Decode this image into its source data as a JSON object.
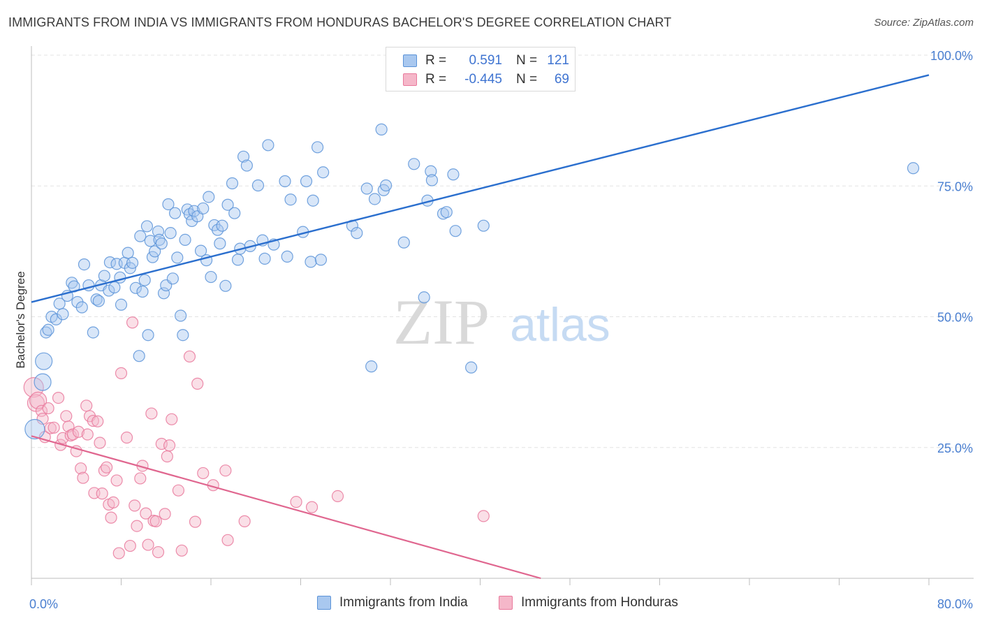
{
  "title": "IMMIGRANTS FROM INDIA VS IMMIGRANTS FROM HONDURAS BACHELOR'S DEGREE CORRELATION CHART",
  "source": "Source: ZipAtlas.com",
  "watermark": {
    "zip": "ZIP",
    "atlas": "atlas"
  },
  "colors": {
    "india_fill": "#a9c8ef",
    "india_stroke": "#5b93d8",
    "india_line": "#2b6fce",
    "honduras_fill": "#f5b7c9",
    "honduras_stroke": "#e9799c",
    "honduras_line": "#e0668f",
    "tick_text": "#4a7fd0"
  },
  "legend_top": [
    {
      "r_label": "R =",
      "r_value": "0.591",
      "n_label": "N =",
      "n_value": "121"
    },
    {
      "r_label": "R =",
      "r_value": "-0.445",
      "n_label": "N =",
      "n_value": "69"
    }
  ],
  "chart_data": {
    "type": "scatter",
    "title": "IMMIGRANTS FROM INDIA VS IMMIGRANTS FROM HONDURAS BACHELOR'S DEGREE CORRELATION CHART",
    "xlabel": "",
    "ylabel": "Bachelor's Degree",
    "xlim": [
      0,
      80
    ],
    "ylim": [
      0,
      100
    ],
    "x_tick_labels": [
      "0.0%",
      "80.0%"
    ],
    "y_tick_labels": [
      "25.0%",
      "50.0%",
      "75.0%",
      "100.0%"
    ],
    "y_ticks": [
      25,
      50,
      75,
      100
    ],
    "grid": true,
    "legend_position": "bottom-center",
    "series": [
      {
        "name": "Immigrants from India",
        "trend": {
          "x": [
            0,
            80
          ],
          "y": [
            52.8,
            96.2
          ]
        },
        "points": [
          [
            0.3,
            28.5,
            14
          ],
          [
            1,
            37.5,
            12
          ],
          [
            1.1,
            41.5,
            12
          ],
          [
            1.3,
            47,
            8
          ],
          [
            1.5,
            47.5,
            8
          ],
          [
            1.8,
            50,
            8
          ],
          [
            2.2,
            49.5,
            8
          ],
          [
            2.5,
            52.5,
            8
          ],
          [
            2.8,
            50.5,
            8
          ],
          [
            3.2,
            54,
            8
          ],
          [
            3.6,
            56.5,
            8
          ],
          [
            3.8,
            55.8,
            8
          ],
          [
            4.1,
            52.8,
            8
          ],
          [
            4.5,
            51.8,
            8
          ],
          [
            4.7,
            60,
            8
          ],
          [
            5.1,
            56,
            8
          ],
          [
            5.5,
            47,
            8
          ],
          [
            5.8,
            53.3,
            8
          ],
          [
            6.0,
            53,
            8
          ],
          [
            6.2,
            56,
            8
          ],
          [
            6.5,
            57.8,
            8
          ],
          [
            6.9,
            55,
            8
          ],
          [
            7.0,
            60.4,
            8
          ],
          [
            7.4,
            55.6,
            8
          ],
          [
            7.6,
            60.1,
            8
          ],
          [
            7.9,
            57.5,
            8
          ],
          [
            8.0,
            52.3,
            8
          ],
          [
            8.3,
            60.3,
            8
          ],
          [
            8.6,
            62.2,
            8
          ],
          [
            8.8,
            59.3,
            8
          ],
          [
            9.0,
            60.3,
            8
          ],
          [
            9.3,
            55.5,
            8
          ],
          [
            9.6,
            42.5,
            8
          ],
          [
            9.7,
            65.4,
            8
          ],
          [
            9.9,
            54.8,
            8
          ],
          [
            10.1,
            57,
            8
          ],
          [
            10.3,
            67.3,
            8
          ],
          [
            10.4,
            46.5,
            8
          ],
          [
            10.6,
            64.5,
            8
          ],
          [
            10.8,
            61.4,
            8
          ],
          [
            11.0,
            62.5,
            8
          ],
          [
            11.3,
            66.3,
            8
          ],
          [
            11.4,
            64.7,
            8
          ],
          [
            11.6,
            64,
            8
          ],
          [
            11.8,
            54.5,
            8
          ],
          [
            12.0,
            56,
            8
          ],
          [
            12.2,
            71.5,
            8
          ],
          [
            12.4,
            66,
            8
          ],
          [
            12.6,
            57.3,
            8
          ],
          [
            12.8,
            69.8,
            8
          ],
          [
            13.0,
            61.3,
            8
          ],
          [
            13.3,
            50.2,
            8
          ],
          [
            13.5,
            46.5,
            8
          ],
          [
            13.7,
            64.7,
            8
          ],
          [
            13.9,
            70.5,
            8
          ],
          [
            14.1,
            69.6,
            8
          ],
          [
            14.3,
            68.3,
            8
          ],
          [
            14.5,
            70.2,
            8
          ],
          [
            14.8,
            69.2,
            8
          ],
          [
            15.1,
            62.6,
            8
          ],
          [
            15.3,
            70.7,
            8
          ],
          [
            15.6,
            60.8,
            8
          ],
          [
            15.8,
            72.9,
            8
          ],
          [
            16.0,
            57.6,
            8
          ],
          [
            16.3,
            67.5,
            8
          ],
          [
            16.6,
            66.6,
            8
          ],
          [
            16.8,
            64,
            8
          ],
          [
            17.0,
            67.4,
            8
          ],
          [
            17.3,
            55.9,
            8
          ],
          [
            17.5,
            71.4,
            8
          ],
          [
            17.9,
            75.5,
            8
          ],
          [
            18.1,
            69.8,
            8
          ],
          [
            18.4,
            60.9,
            8
          ],
          [
            18.6,
            63,
            8
          ],
          [
            18.9,
            80.6,
            8
          ],
          [
            19.2,
            78.9,
            8
          ],
          [
            19.5,
            63.5,
            8
          ],
          [
            20.2,
            75.1,
            8
          ],
          [
            20.6,
            64.6,
            8
          ],
          [
            20.8,
            61.1,
            8
          ],
          [
            21.1,
            82.8,
            8
          ],
          [
            21.6,
            63.8,
            8
          ],
          [
            22.6,
            75.9,
            8
          ],
          [
            22.8,
            61.5,
            8
          ],
          [
            23.1,
            72.4,
            8
          ],
          [
            24.2,
            66.2,
            8
          ],
          [
            24.5,
            75.9,
            8
          ],
          [
            24.9,
            60.5,
            8
          ],
          [
            25.1,
            72.2,
            8
          ],
          [
            25.5,
            82.4,
            8
          ],
          [
            25.8,
            60.9,
            8
          ],
          [
            26.0,
            77.6,
            8
          ],
          [
            28.6,
            67.4,
            8
          ],
          [
            29.0,
            66,
            8
          ],
          [
            29.9,
            74.5,
            8
          ],
          [
            30.3,
            40.5,
            8
          ],
          [
            30.6,
            72.5,
            8
          ],
          [
            31.2,
            85.8,
            8
          ],
          [
            31.4,
            74.2,
            8
          ],
          [
            31.6,
            75.1,
            8
          ],
          [
            33.2,
            64.2,
            8
          ],
          [
            34.1,
            79.2,
            8
          ],
          [
            35.0,
            53.7,
            8
          ],
          [
            35.3,
            72.2,
            8
          ],
          [
            35.6,
            77.8,
            8
          ],
          [
            35.7,
            76.1,
            8
          ],
          [
            36.7,
            69.7,
            8
          ],
          [
            37.0,
            70,
            8
          ],
          [
            37.6,
            77.2,
            8
          ],
          [
            37.8,
            66.4,
            8
          ],
          [
            39.2,
            40.3,
            8
          ],
          [
            40.3,
            67.4,
            8
          ],
          [
            78.6,
            78.4,
            8
          ]
        ]
      },
      {
        "name": "Immigrants from Honduras",
        "trend": {
          "x": [
            0,
            45.4
          ],
          "y": [
            27.2,
            0
          ]
        },
        "points": [
          [
            0.2,
            36.5,
            14
          ],
          [
            0.4,
            33.5,
            12
          ],
          [
            0.6,
            34,
            12
          ],
          [
            0.9,
            32,
            8
          ],
          [
            1.0,
            30.5,
            8
          ],
          [
            1.2,
            27,
            8
          ],
          [
            1.5,
            32.5,
            8
          ],
          [
            1.7,
            28.7,
            8
          ],
          [
            2.0,
            28.8,
            8
          ],
          [
            2.4,
            34.5,
            8
          ],
          [
            2.6,
            25.5,
            8
          ],
          [
            2.8,
            26.8,
            8
          ],
          [
            3.1,
            31,
            8
          ],
          [
            3.3,
            29,
            8
          ],
          [
            3.5,
            27.3,
            8
          ],
          [
            3.7,
            27.5,
            8
          ],
          [
            4.0,
            24.3,
            8
          ],
          [
            4.2,
            28,
            8
          ],
          [
            4.4,
            21,
            8
          ],
          [
            4.6,
            19.2,
            8
          ],
          [
            4.9,
            33,
            8
          ],
          [
            5.0,
            27.5,
            8
          ],
          [
            5.2,
            31,
            8
          ],
          [
            5.5,
            30.1,
            8
          ],
          [
            5.6,
            16.3,
            8
          ],
          [
            5.9,
            30,
            8
          ],
          [
            6.1,
            25.9,
            8
          ],
          [
            6.3,
            16.2,
            8
          ],
          [
            6.5,
            20.6,
            8
          ],
          [
            6.7,
            21.2,
            8
          ],
          [
            6.9,
            14.1,
            8
          ],
          [
            7.1,
            11.6,
            8
          ],
          [
            7.3,
            14.5,
            8
          ],
          [
            7.6,
            18.7,
            8
          ],
          [
            7.8,
            4.8,
            8
          ],
          [
            8.0,
            39.2,
            8
          ],
          [
            8.5,
            26.9,
            8
          ],
          [
            8.8,
            6.2,
            8
          ],
          [
            9.0,
            48.9,
            8
          ],
          [
            9.2,
            13.9,
            8
          ],
          [
            9.4,
            10,
            8
          ],
          [
            9.7,
            19.1,
            8
          ],
          [
            9.9,
            21.5,
            8
          ],
          [
            10.2,
            12.4,
            8
          ],
          [
            10.4,
            6.4,
            8
          ],
          [
            10.7,
            31.5,
            8
          ],
          [
            10.9,
            11,
            8
          ],
          [
            11.1,
            10.9,
            8
          ],
          [
            11.3,
            5,
            8
          ],
          [
            11.6,
            25.7,
            8
          ],
          [
            11.9,
            12.3,
            8
          ],
          [
            12.1,
            23.3,
            8
          ],
          [
            12.3,
            25.4,
            8
          ],
          [
            12.5,
            30.4,
            8
          ],
          [
            13.1,
            16.8,
            8
          ],
          [
            13.4,
            5.3,
            8
          ],
          [
            14.1,
            42.4,
            8
          ],
          [
            14.6,
            10.8,
            8
          ],
          [
            14.8,
            37.2,
            8
          ],
          [
            15.3,
            20.1,
            8
          ],
          [
            16.2,
            17.8,
            8
          ],
          [
            17.3,
            20.6,
            8
          ],
          [
            17.5,
            7.3,
            8
          ],
          [
            19.0,
            10.9,
            8
          ],
          [
            23.6,
            14.6,
            8
          ],
          [
            25.0,
            13.6,
            8
          ],
          [
            27.3,
            15.7,
            8
          ],
          [
            40.3,
            11.9,
            8
          ]
        ]
      }
    ]
  },
  "legend_bottom": [
    "Immigrants from India",
    "Immigrants from Honduras"
  ]
}
